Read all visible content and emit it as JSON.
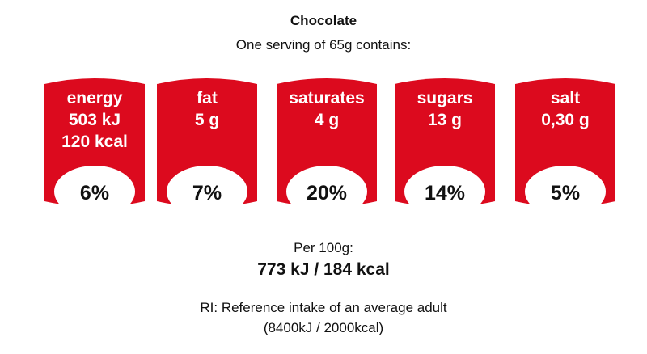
{
  "title": "Chocolate",
  "subtitle": "One serving of 65g contains:",
  "colors": {
    "badge_red": "#dc0a1e",
    "badge_light": "#ffffff"
  },
  "nutrients": [
    {
      "name": "energy",
      "lines": [
        "503 kJ",
        "120 kcal"
      ],
      "percent": "6%"
    },
    {
      "name": "fat",
      "lines": [
        "5 g"
      ],
      "percent": "7%"
    },
    {
      "name": "saturates",
      "lines": [
        "4 g"
      ],
      "percent": "20%"
    },
    {
      "name": "sugars",
      "lines": [
        "13 g"
      ],
      "percent": "14%"
    },
    {
      "name": "salt",
      "lines": [
        "0,30 g"
      ],
      "percent": "5%"
    }
  ],
  "per100": {
    "label": "Per 100g:",
    "value": "773 kJ / 184 kcal"
  },
  "ri": {
    "line1": "RI: Reference intake of an average adult",
    "line2": "(8400kJ / 2000kcal)"
  }
}
